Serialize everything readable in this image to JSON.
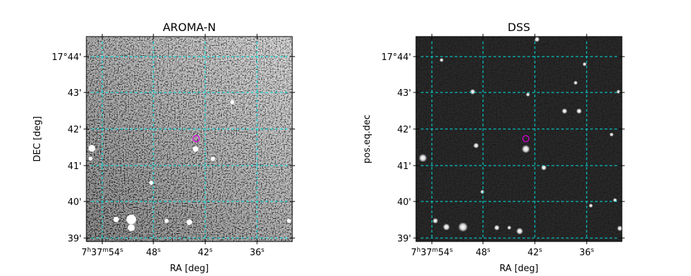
{
  "panels": [
    {
      "title": "AROMA-N",
      "x_label": "RA [deg]",
      "y_label": "DEC [deg]",
      "x_ticks": [
        "7h37m54s",
        "48s",
        "42s",
        "36s"
      ],
      "y_ticks": [
        "17°44'",
        "43'",
        "42'",
        "41'",
        "40'",
        "39'"
      ]
    },
    {
      "title": "DSS",
      "x_label": "RA [deg]",
      "y_label": "pos.eq.dec",
      "x_ticks": [
        "7h37m54s",
        "48s",
        "42s",
        "36s"
      ],
      "y_ticks": [
        "17°44'",
        "43'",
        "42'",
        "41'",
        "40'",
        "39'"
      ]
    }
  ]
}
